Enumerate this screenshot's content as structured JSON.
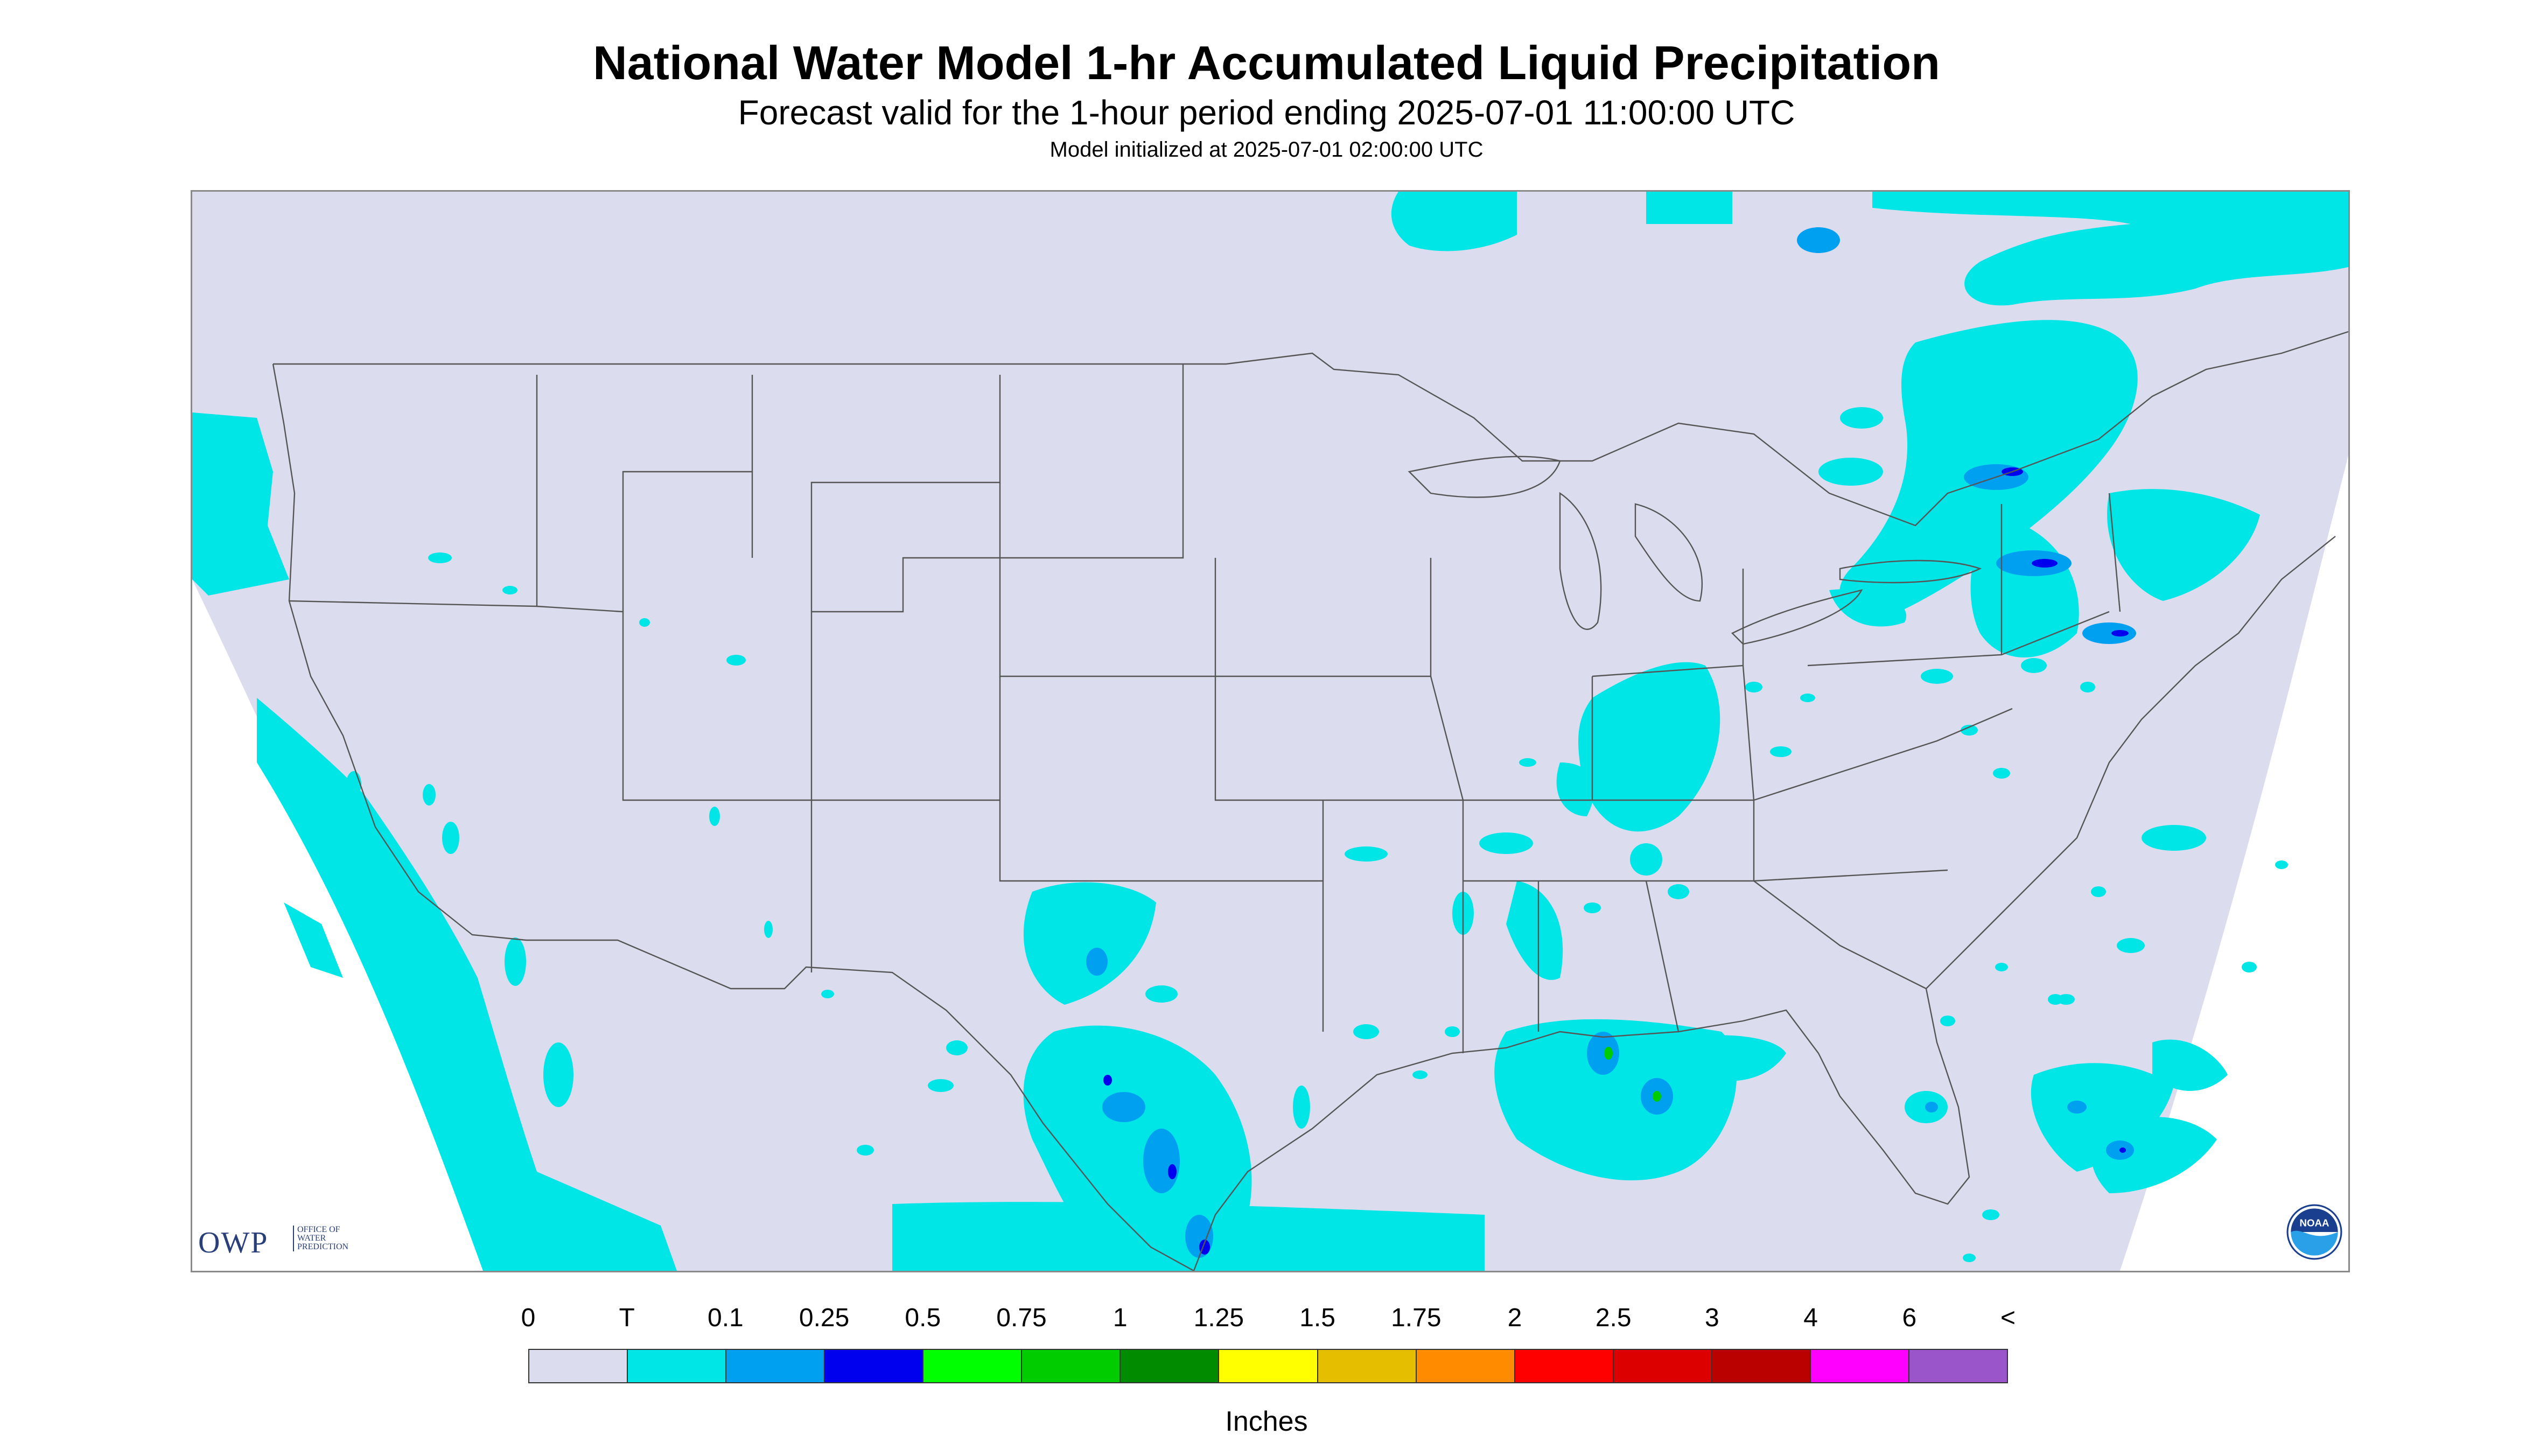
{
  "header": {
    "title": "National Water Model 1-hr Accumulated Liquid Precipitation",
    "subtitle": "Forecast valid for the 1-hour period ending 2025-07-01 11:00:00 UTC",
    "init": "Model initialized at 2025-07-01 02:00:00 UTC"
  },
  "logos": {
    "owp_text": "OWP",
    "owp_sub": [
      "OFFICE OF",
      "WATER",
      "PREDICTION"
    ],
    "noaa_text": "NOAA"
  },
  "legend": {
    "units": "Inches",
    "labels": [
      "0",
      "T",
      "0.1",
      "0.25",
      "0.5",
      "0.75",
      "1",
      "1.25",
      "1.5",
      "1.75",
      "2",
      "2.5",
      "3",
      "4",
      "6",
      "<"
    ],
    "colors": [
      "#dcdcef",
      "#00e5e5",
      "#00a0f0",
      "#0000ee",
      "#00ff00",
      "#00cc00",
      "#008b00",
      "#ffff00",
      "#e5be00",
      "#ff8c00",
      "#ff0000",
      "#dd0000",
      "#bb0000",
      "#ff00ff",
      "#9955c9"
    ]
  },
  "map": {
    "background_color": "#ffffff",
    "domain_color": "#dcdcef",
    "precip_light": "#00e5e5",
    "precip_mid": "#00a0f0",
    "precip_heavy": "#0000ee",
    "precip_extreme": "#00cc00",
    "boundary_color": "#555555"
  }
}
